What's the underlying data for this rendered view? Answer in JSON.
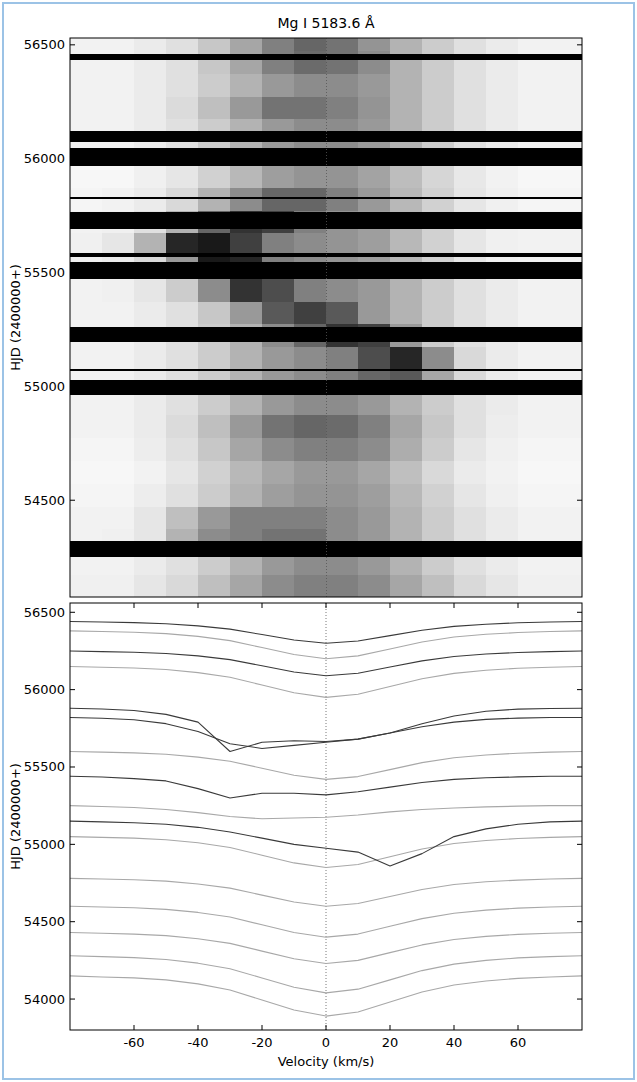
{
  "chart_data": [
    {
      "type": "heatmap",
      "title": "Mg I 5183.6 Å",
      "ylabel": "HJD (2400000+)",
      "xlim": [
        -80,
        80
      ],
      "ylim": [
        54075,
        56530
      ],
      "yticks": [
        54500,
        55000,
        55500,
        56000,
        56500
      ],
      "tick_labels": "y",
      "reference_line": 0,
      "x_edges": [
        -80,
        -70,
        -60,
        -50,
        -40,
        -30,
        -20,
        -10,
        0,
        10,
        20,
        30,
        40,
        50,
        60,
        70,
        80
      ],
      "y_edges": [
        54075,
        54175,
        54275,
        54375,
        54475,
        54575,
        54675,
        54775,
        54875,
        54975,
        55075,
        55175,
        55275,
        55375,
        55475,
        55575,
        55675,
        55775,
        55875,
        55975,
        56075,
        56175,
        56275,
        56375,
        56475,
        56530
      ],
      "cells": [
        [
          0.06,
          0.06,
          0.1,
          0.15,
          0.25,
          0.35,
          0.45,
          0.5,
          0.5,
          0.45,
          0.35,
          0.25,
          0.15,
          0.1,
          0.06,
          0.06
        ],
        [
          0.05,
          0.05,
          0.08,
          0.12,
          0.2,
          0.3,
          0.4,
          0.45,
          0.45,
          0.4,
          0.3,
          0.2,
          0.12,
          0.08,
          0.05,
          0.05
        ],
        [
          0.05,
          0.06,
          0.1,
          0.3,
          0.45,
          0.5,
          0.55,
          0.55,
          0.45,
          0.4,
          0.3,
          0.2,
          0.12,
          0.08,
          0.05,
          0.05
        ],
        [
          0.05,
          0.05,
          0.1,
          0.25,
          0.4,
          0.5,
          0.5,
          0.5,
          0.45,
          0.4,
          0.3,
          0.2,
          0.12,
          0.08,
          0.05,
          0.05
        ],
        [
          0.04,
          0.04,
          0.07,
          0.12,
          0.2,
          0.3,
          0.38,
          0.42,
          0.42,
          0.38,
          0.28,
          0.18,
          0.1,
          0.06,
          0.04,
          0.04
        ],
        [
          0.03,
          0.03,
          0.05,
          0.1,
          0.18,
          0.28,
          0.35,
          0.4,
          0.4,
          0.35,
          0.25,
          0.15,
          0.08,
          0.05,
          0.03,
          0.03
        ],
        [
          0.04,
          0.04,
          0.07,
          0.12,
          0.22,
          0.35,
          0.45,
          0.5,
          0.5,
          0.45,
          0.32,
          0.2,
          0.1,
          0.06,
          0.04,
          0.04
        ],
        [
          0.05,
          0.05,
          0.08,
          0.14,
          0.25,
          0.4,
          0.55,
          0.6,
          0.58,
          0.5,
          0.35,
          0.22,
          0.12,
          0.07,
          0.05,
          0.05
        ],
        [
          0.05,
          0.05,
          0.08,
          0.12,
          0.2,
          0.3,
          0.4,
          0.45,
          0.45,
          0.4,
          0.3,
          0.2,
          0.12,
          0.08,
          0.05,
          0.05
        ],
        [
          0.05,
          0.05,
          0.08,
          0.12,
          0.2,
          0.3,
          0.4,
          0.45,
          0.5,
          0.6,
          0.65,
          0.35,
          0.15,
          0.08,
          0.05,
          0.05
        ],
        [
          0.05,
          0.05,
          0.08,
          0.12,
          0.2,
          0.3,
          0.4,
          0.45,
          0.5,
          0.7,
          0.85,
          0.45,
          0.15,
          0.08,
          0.05,
          0.05
        ],
        [
          0.05,
          0.05,
          0.08,
          0.12,
          0.2,
          0.3,
          0.45,
          0.6,
          0.8,
          0.75,
          0.4,
          0.2,
          0.12,
          0.08,
          0.05,
          0.05
        ],
        [
          0.05,
          0.05,
          0.08,
          0.12,
          0.22,
          0.4,
          0.65,
          0.75,
          0.65,
          0.4,
          0.3,
          0.2,
          0.12,
          0.08,
          0.05,
          0.05
        ],
        [
          0.05,
          0.06,
          0.1,
          0.2,
          0.45,
          0.8,
          0.7,
          0.5,
          0.45,
          0.4,
          0.3,
          0.2,
          0.12,
          0.08,
          0.05,
          0.05
        ],
        [
          0.06,
          0.08,
          0.15,
          0.4,
          0.9,
          0.85,
          0.5,
          0.45,
          0.42,
          0.38,
          0.28,
          0.18,
          0.1,
          0.06,
          0.05,
          0.05
        ],
        [
          0.06,
          0.1,
          0.3,
          0.85,
          0.9,
          0.75,
          0.5,
          0.45,
          0.42,
          0.38,
          0.28,
          0.18,
          0.1,
          0.06,
          0.05,
          0.05
        ],
        [
          0.05,
          0.06,
          0.12,
          0.3,
          0.6,
          0.8,
          0.75,
          0.5,
          0.42,
          0.38,
          0.28,
          0.18,
          0.1,
          0.06,
          0.05,
          0.05
        ],
        [
          0.04,
          0.05,
          0.08,
          0.15,
          0.3,
          0.45,
          0.6,
          0.6,
          0.5,
          0.4,
          0.28,
          0.18,
          0.1,
          0.06,
          0.04,
          0.04
        ],
        [
          0.03,
          0.03,
          0.06,
          0.1,
          0.18,
          0.28,
          0.38,
          0.42,
          0.42,
          0.36,
          0.26,
          0.16,
          0.09,
          0.05,
          0.03,
          0.03
        ],
        [
          0.05,
          0.05,
          0.08,
          0.12,
          0.2,
          0.3,
          0.4,
          0.45,
          0.45,
          0.4,
          0.3,
          0.2,
          0.12,
          0.08,
          0.05,
          0.05
        ],
        [
          0.05,
          0.05,
          0.08,
          0.12,
          0.2,
          0.3,
          0.4,
          0.45,
          0.45,
          0.4,
          0.3,
          0.2,
          0.12,
          0.08,
          0.05,
          0.05
        ],
        [
          0.05,
          0.05,
          0.08,
          0.14,
          0.25,
          0.4,
          0.55,
          0.55,
          0.5,
          0.42,
          0.3,
          0.2,
          0.12,
          0.08,
          0.05,
          0.05
        ],
        [
          0.05,
          0.05,
          0.08,
          0.12,
          0.2,
          0.3,
          0.4,
          0.45,
          0.45,
          0.4,
          0.3,
          0.2,
          0.12,
          0.08,
          0.05,
          0.05
        ],
        [
          0.05,
          0.05,
          0.08,
          0.12,
          0.22,
          0.35,
          0.5,
          0.58,
          0.55,
          0.45,
          0.3,
          0.2,
          0.12,
          0.08,
          0.05,
          0.05
        ],
        [
          0.05,
          0.05,
          0.08,
          0.12,
          0.22,
          0.35,
          0.5,
          0.6,
          0.55,
          0.42,
          0.3,
          0.2,
          0.12,
          0.08,
          0.05,
          0.05
        ]
      ],
      "gaps": [
        [
          54250,
          54320
        ],
        [
          54960,
          55030
        ],
        [
          55068,
          55075
        ],
        [
          55195,
          55260
        ],
        [
          55470,
          55545
        ],
        [
          55568,
          55585
        ],
        [
          55690,
          55765
        ],
        [
          55825,
          55832
        ],
        [
          55970,
          56045
        ],
        [
          56075,
          56120
        ],
        [
          56435,
          56460
        ]
      ]
    },
    {
      "type": "line",
      "xlabel": "Velocity (km/s)",
      "ylabel": "HJD (2400000+)",
      "xlim": [
        -80,
        80
      ],
      "ylim": [
        53800,
        56560
      ],
      "xticks": [
        -60,
        -40,
        -20,
        0,
        20,
        40,
        60
      ],
      "yticks": [
        54000,
        54500,
        55000,
        55500,
        56000,
        56500
      ],
      "reference_line": 0,
      "x": [
        -80,
        -70,
        -60,
        -50,
        -40,
        -30,
        -20,
        -10,
        0,
        10,
        20,
        30,
        40,
        50,
        60,
        70,
        80
      ],
      "series": [
        {
          "color": "#a8a8a8",
          "values": [
            54150,
            54143,
            54137,
            54124,
            54098,
            54059,
            53994,
            53929,
            53890,
            53916,
            53981,
            54046,
            54091,
            54117,
            54134,
            54143,
            54150
          ]
        },
        {
          "color": "#a8a8a8",
          "values": [
            54280,
            54274,
            54268,
            54256,
            54232,
            54196,
            54136,
            54076,
            54040,
            54064,
            54124,
            54184,
            54226,
            54250,
            54266,
            54274,
            54280
          ]
        },
        {
          "color": "#a8a8a8",
          "values": [
            54430,
            54425,
            54420,
            54410,
            54390,
            54360,
            54310,
            54260,
            54230,
            54250,
            54300,
            54350,
            54385,
            54405,
            54418,
            54425,
            54430
          ]
        },
        {
          "color": "#a8a8a8",
          "values": [
            54600,
            54595,
            54590,
            54580,
            54560,
            54530,
            54480,
            54430,
            54400,
            54420,
            54470,
            54520,
            54555,
            54575,
            54588,
            54595,
            54600
          ]
        },
        {
          "color": "#a8a8a8",
          "values": [
            54780,
            54776,
            54771,
            54762,
            54744,
            54717,
            54672,
            54627,
            54600,
            54618,
            54663,
            54708,
            54740,
            54758,
            54769,
            54776,
            54780
          ]
        },
        {
          "color": "#a8a8a8",
          "values": [
            55050,
            55045,
            55040,
            55030,
            55010,
            54980,
            54930,
            54880,
            54850,
            54870,
            54920,
            54970,
            55005,
            55025,
            55038,
            55045,
            55050
          ]
        },
        {
          "color": "#3a3a3a",
          "values": [
            55150,
            55145,
            55140,
            55130,
            55110,
            55080,
            55040,
            55000,
            54975,
            54950,
            54860,
            54940,
            55050,
            55100,
            55130,
            55145,
            55150
          ]
        },
        {
          "color": "#a8a8a8",
          "values": [
            55250,
            55245,
            55238,
            55225,
            55205,
            55180,
            55165,
            55170,
            55175,
            55190,
            55210,
            55225,
            55235,
            55242,
            55247,
            55250,
            55250
          ]
        },
        {
          "color": "#3a3a3a",
          "values": [
            55440,
            55435,
            55425,
            55410,
            55360,
            55300,
            55330,
            55330,
            55320,
            55340,
            55370,
            55400,
            55420,
            55430,
            55436,
            55440,
            55440
          ]
        },
        {
          "color": "#a8a8a8",
          "values": [
            55600,
            55596,
            55591,
            55582,
            55564,
            55537,
            55492,
            55447,
            55420,
            55438,
            55483,
            55528,
            55560,
            55578,
            55589,
            55596,
            55600
          ]
        },
        {
          "color": "#3a3a3a",
          "values": [
            55820,
            55815,
            55805,
            55780,
            55730,
            55650,
            55620,
            55640,
            55660,
            55680,
            55720,
            55760,
            55790,
            55808,
            55816,
            55820,
            55820
          ]
        },
        {
          "color": "#3a3a3a",
          "values": [
            55880,
            55875,
            55865,
            55840,
            55790,
            55600,
            55660,
            55670,
            55665,
            55680,
            55720,
            55780,
            55830,
            55860,
            55874,
            55878,
            55880
          ]
        },
        {
          "color": "#a8a8a8",
          "values": [
            56150,
            56145,
            56140,
            56130,
            56110,
            56080,
            56030,
            55980,
            55950,
            55970,
            56020,
            56070,
            56105,
            56125,
            56138,
            56145,
            56150
          ]
        },
        {
          "color": "#3a3a3a",
          "values": [
            56250,
            56246,
            56242,
            56234,
            56218,
            56194,
            56154,
            56114,
            56090,
            56106,
            56146,
            56186,
            56214,
            56230,
            56240,
            56246,
            56250
          ]
        },
        {
          "color": "#a8a8a8",
          "values": [
            56380,
            56376,
            56371,
            56362,
            56344,
            56317,
            56272,
            56227,
            56200,
            56218,
            56263,
            56308,
            56340,
            56358,
            56369,
            56376,
            56380
          ]
        },
        {
          "color": "#3a3a3a",
          "values": [
            56440,
            56437,
            56433,
            56426,
            56412,
            56391,
            56356,
            56321,
            56300,
            56314,
            56349,
            56384,
            56409,
            56423,
            56432,
            56437,
            56440
          ]
        }
      ]
    }
  ]
}
